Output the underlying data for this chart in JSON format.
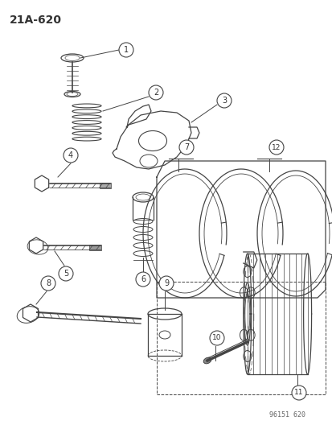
{
  "title": "21A-620",
  "watermark": "96151 620",
  "bg_color": "#ffffff",
  "line_color": "#444444",
  "label_color": "#333333",
  "figsize": [
    4.14,
    5.33
  ],
  "dpi": 100
}
